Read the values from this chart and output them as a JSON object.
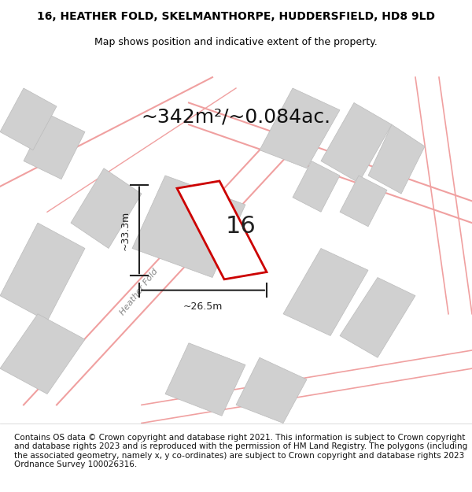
{
  "title_line1": "16, HEATHER FOLD, SKELMANTHORPE, HUDDERSFIELD, HD8 9LD",
  "title_line2": "Map shows position and indicative extent of the property.",
  "area_text": "~342m²/~0.084ac.",
  "dim_width": "~26.5m",
  "dim_height": "~33.3m",
  "label_number": "16",
  "road_label": "Heather Fold",
  "footer_text": "Contains OS data © Crown copyright and database right 2021. This information is subject to Crown copyright and database rights 2023 and is reproduced with the permission of HM Land Registry. The polygons (including the associated geometry, namely x, y co-ordinates) are subject to Crown copyright and database rights 2023 Ordnance Survey 100026316.",
  "bg_color": "#ffffff",
  "map_bg": "#f5f5f5",
  "polygon_fill": "#ffffff",
  "polygon_edge": "#cc0000",
  "gray_fill": "#d0d0d0",
  "pink_line": "#f0a0a0",
  "dark_line": "#555555",
  "title_fontsize": 10,
  "subtitle_fontsize": 9,
  "area_fontsize": 18,
  "label_fontsize": 22,
  "road_fontsize": 8,
  "footer_fontsize": 7.5
}
